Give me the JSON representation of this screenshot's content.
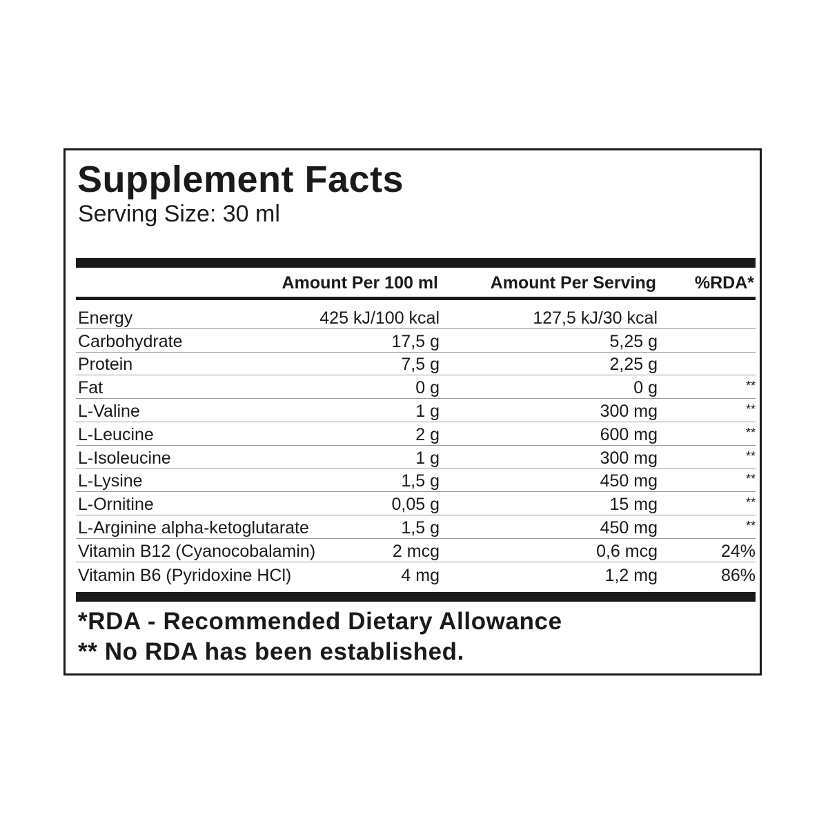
{
  "title": "Supplement Facts",
  "serving_size": "Serving Size: 30 ml",
  "columns": {
    "per_100": "Amount Per 100 ml",
    "per_serving": "Amount Per Serving",
    "rda": "%RDA*"
  },
  "rows": [
    {
      "name": "Energy",
      "per_100": "425 kJ/100 kcal",
      "per_serving": "127,5 kJ/30 kcal",
      "rda": ""
    },
    {
      "name": "Carbohydrate",
      "per_100": "17,5 g",
      "per_serving": "5,25 g",
      "rda": ""
    },
    {
      "name": "Protein",
      "per_100": "7,5 g",
      "per_serving": "2,25 g",
      "rda": ""
    },
    {
      "name": "Fat",
      "per_100": "0 g",
      "per_serving": "0 g",
      "rda": "**"
    },
    {
      "name": "L-Valine",
      "per_100": "1 g",
      "per_serving": "300 mg",
      "rda": "**"
    },
    {
      "name": "L-Leucine",
      "per_100": "2 g",
      "per_serving": "600 mg",
      "rda": "**"
    },
    {
      "name": "L-Isoleucine",
      "per_100": "1 g",
      "per_serving": "300 mg",
      "rda": "**"
    },
    {
      "name": "L-Lysine",
      "per_100": "1,5 g",
      "per_serving": "450 mg",
      "rda": "**"
    },
    {
      "name": "L-Ornitine",
      "per_100": "0,05 g",
      "per_serving": "15 mg",
      "rda": "**"
    },
    {
      "name": "L-Arginine alpha-ketoglutarate",
      "per_100": "1,5 g",
      "per_serving": "450 mg",
      "rda": "**"
    },
    {
      "name": "Vitamin B12 (Cyanocobalamin)",
      "per_100": "2 mcg",
      "per_serving": "0,6 mcg",
      "rda": "24%"
    },
    {
      "name": "Vitamin B6 (Pyridoxine HCl)",
      "per_100": "4 mg",
      "per_serving": "1,2 mg",
      "rda": "86%"
    }
  ],
  "footnotes": {
    "rda": "*RDA - Recommended Dietary Allowance",
    "no_rda": "** No RDA has been established."
  }
}
